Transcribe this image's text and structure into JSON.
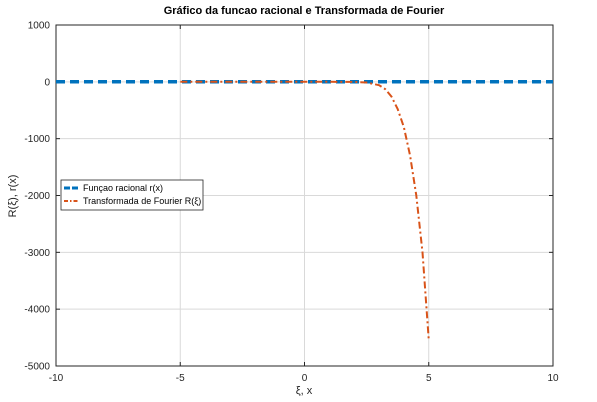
{
  "chart_data": {
    "type": "line",
    "title": "Gráfico da funcao racional e Transformada de Fourier",
    "xlabel": "ξ, x",
    "ylabel": "R(ξ), r(x)",
    "xlim": [
      -10,
      10
    ],
    "ylim": [
      -5000,
      1000
    ],
    "xticks": [
      "-10",
      "-5",
      "0",
      "5",
      "10"
    ],
    "yticks": [
      "1000",
      "0",
      "-1000",
      "-2000",
      "-3000",
      "-4000",
      "-5000"
    ],
    "grid": true,
    "legend_position": "middle-left",
    "series": [
      {
        "name": "Funçao racional r(x)",
        "color": "#0072BD",
        "style": "dashed",
        "x": [
          -10,
          -8,
          -6,
          -4,
          -2,
          0,
          2,
          4,
          6,
          8,
          10
        ],
        "y": [
          0,
          0,
          0,
          0,
          0,
          0,
          0,
          0,
          0,
          0,
          0
        ]
      },
      {
        "name": "Transformada de Fourier R(ξ)",
        "color": "#D95319",
        "style": "dashdot",
        "x": [
          -5,
          -4,
          -3,
          -2,
          -1,
          0,
          1,
          2,
          2.5,
          3,
          3.25,
          3.5,
          3.75,
          4,
          4.25,
          4.5,
          4.75,
          5
        ],
        "y": [
          0,
          0,
          0,
          0,
          0,
          0,
          0,
          -2,
          -12,
          -60,
          -130,
          -260,
          -480,
          -800,
          -1300,
          -2000,
          -3000,
          -4550
        ]
      }
    ]
  }
}
